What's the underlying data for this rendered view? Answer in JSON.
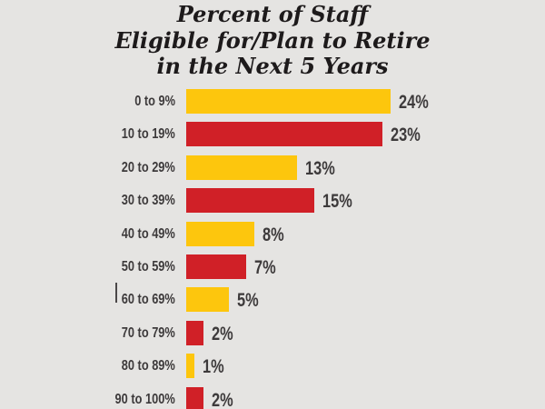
{
  "colors": {
    "background": "#e5e4e2",
    "bar_yellow": "#fdc60d",
    "bar_red": "#d02027",
    "title_text": "#1d1a1b",
    "label_text": "#3d3a3b"
  },
  "title": {
    "lines": [
      "Percent of Staff",
      "Eligible for/Plan to Retire",
      "in the Next 5 Years"
    ]
  },
  "chart_data": {
    "type": "bar",
    "orientation": "horizontal",
    "title": "Percent of Staff Eligible for/Plan to Retire in the Next 5 Years",
    "categories": [
      "0 to 9%",
      "10 to 19%",
      "20 to 29%",
      "30 to 39%",
      "40 to 49%",
      "50 to 59%",
      "60 to 69%",
      "70 to 79%",
      "80 to 89%",
      "90 to 100%"
    ],
    "values": [
      24,
      23,
      13,
      15,
      8,
      7,
      5,
      2,
      1,
      2
    ],
    "value_labels": [
      "24%",
      "23%",
      "13%",
      "15%",
      "8%",
      "7%",
      "5%",
      "2%",
      "1%",
      "2%"
    ],
    "bar_color_sequence": [
      "#fdc60d",
      "#d02027"
    ],
    "xlim": [
      0,
      24
    ],
    "grid": false,
    "legend": "none",
    "value_label_position": "right-of-bar"
  },
  "artifacts": {
    "stray_cursor_mark": {
      "row_index": 6,
      "description": "thin vertical line just before the '60 to 69%' label"
    }
  }
}
